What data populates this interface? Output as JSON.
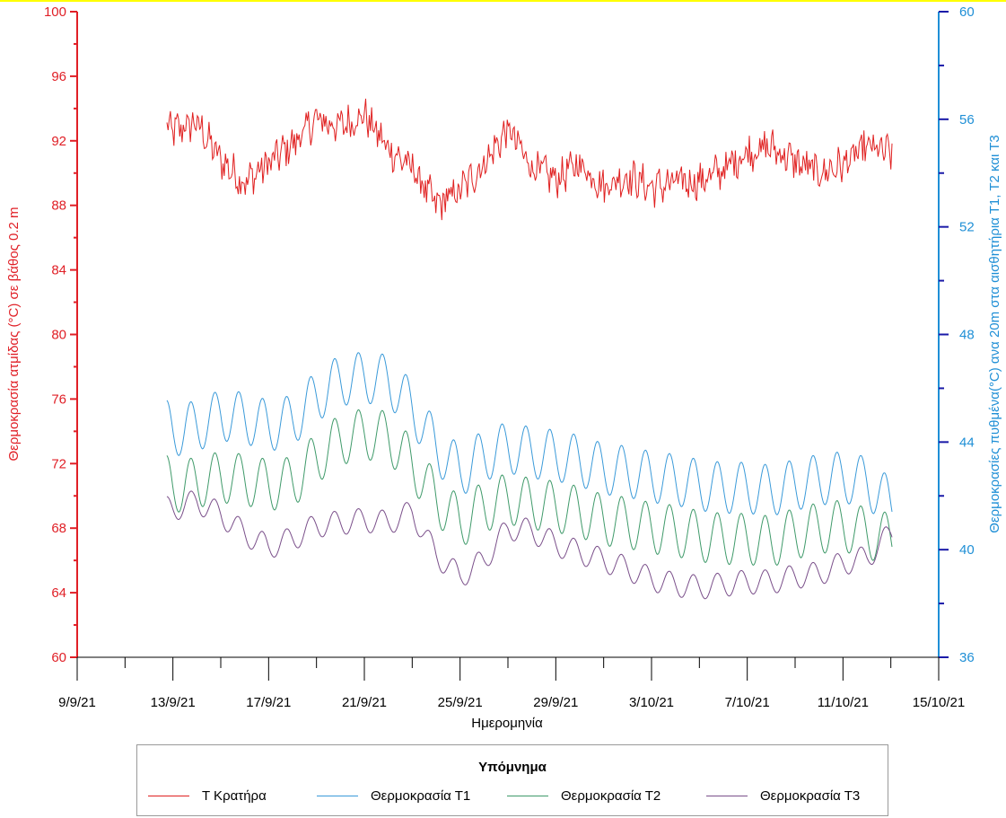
{
  "chart_data": {
    "type": "line",
    "title": "",
    "xlabel": "Ημερομηνία",
    "ylabel_left": "Θερμοκρασία ατμίδας (°C) σε βάθος 0.2 m",
    "ylabel_right": "Θερμοκρασίες πυθμένα(°C) ανα 20m στα αισθητήρια Τ1, Τ2 και Τ3",
    "x_ticks": [
      "9/9/21",
      "13/9/21",
      "17/9/21",
      "21/9/21",
      "25/9/21",
      "29/9/21",
      "3/10/21",
      "7/10/21",
      "11/10/21",
      "15/10/21"
    ],
    "xlim": [
      "2021-09-09",
      "2021-10-15"
    ],
    "y_left_ticks": [
      "60",
      "64",
      "68",
      "72",
      "76",
      "80",
      "84",
      "88",
      "92",
      "96",
      "100"
    ],
    "ylim_left": [
      60,
      100
    ],
    "y_right_ticks": [
      "36",
      "40",
      "44",
      "48",
      "52",
      "56",
      "60"
    ],
    "ylim_right": [
      36,
      60
    ],
    "grid": false,
    "legend_position": "bottom",
    "legend_title": "Υπόμνημα",
    "colors": {
      "left_axis": "#e01f26",
      "right_axis": "#1f8fd6",
      "right_axis_ticks": "#1a1aa8",
      "top_border": "#ffff00"
    },
    "series": [
      {
        "name": "Τ  Κρατήρα",
        "axis": "left",
        "color": "#e02020",
        "x": [
          "2021-09-12",
          "2021-09-13",
          "2021-09-14",
          "2021-09-15",
          "2021-09-16",
          "2021-09-17",
          "2021-09-18",
          "2021-09-19",
          "2021-09-20",
          "2021-09-21",
          "2021-09-22",
          "2021-09-23",
          "2021-09-24",
          "2021-09-25",
          "2021-09-26",
          "2021-09-27",
          "2021-09-28",
          "2021-09-29",
          "2021-09-30",
          "2021-10-01",
          "2021-10-02",
          "2021-10-03",
          "2021-10-04",
          "2021-10-05",
          "2021-10-06",
          "2021-10-07",
          "2021-10-08",
          "2021-10-09",
          "2021-10-10",
          "2021-10-11",
          "2021-10-12",
          "2021-10-13"
        ],
        "values": [
          93.5,
          92.6,
          93.1,
          90.8,
          89.4,
          90.6,
          91.8,
          93.3,
          92.9,
          93.6,
          91.5,
          90.3,
          88.0,
          88.9,
          90.6,
          92.7,
          90.4,
          89.6,
          90.6,
          89.2,
          89.8,
          89.1,
          89.4,
          89.5,
          90.2,
          91.3,
          91.6,
          90.7,
          90.0,
          90.5,
          91.6,
          91.2
        ]
      },
      {
        "name": "Θερμοκρασία Τ1",
        "axis": "right",
        "color": "#3a9ad9",
        "x": [
          "2021-09-12",
          "2021-09-13",
          "2021-09-14",
          "2021-09-15",
          "2021-09-16",
          "2021-09-17",
          "2021-09-18",
          "2021-09-19",
          "2021-09-20",
          "2021-09-21",
          "2021-09-22",
          "2021-09-23",
          "2021-09-24",
          "2021-09-25",
          "2021-09-26",
          "2021-09-27",
          "2021-09-28",
          "2021-09-29",
          "2021-09-30",
          "2021-10-01",
          "2021-10-02",
          "2021-10-03",
          "2021-10-04",
          "2021-10-05",
          "2021-10-06",
          "2021-10-07",
          "2021-10-08",
          "2021-10-09",
          "2021-10-10",
          "2021-10-11",
          "2021-10-12",
          "2021-10-13"
        ],
        "values": [
          45.2,
          44.4,
          44.6,
          45.0,
          44.9,
          44.6,
          44.8,
          45.7,
          46.3,
          46.4,
          46.3,
          45.3,
          43.8,
          42.9,
          43.5,
          43.8,
          43.6,
          43.5,
          43.3,
          43.0,
          42.9,
          42.7,
          42.6,
          42.4,
          42.3,
          42.3,
          42.2,
          42.4,
          42.6,
          42.7,
          42.5,
          41.7
        ]
      },
      {
        "name": "Θερμοκρασία Τ2",
        "axis": "right",
        "color": "#3f9a6a",
        "x": [
          "2021-09-12",
          "2021-09-13",
          "2021-09-14",
          "2021-09-15",
          "2021-09-16",
          "2021-09-17",
          "2021-09-18",
          "2021-09-19",
          "2021-09-20",
          "2021-09-21",
          "2021-09-22",
          "2021-09-23",
          "2021-09-24",
          "2021-09-25",
          "2021-09-26",
          "2021-09-27",
          "2021-09-28",
          "2021-09-29",
          "2021-09-30",
          "2021-10-01",
          "2021-10-02",
          "2021-10-03",
          "2021-10-04",
          "2021-10-05",
          "2021-10-06",
          "2021-10-07",
          "2021-10-08",
          "2021-10-09",
          "2021-10-10",
          "2021-10-11",
          "2021-10-12",
          "2021-10-13"
        ],
        "values": [
          43.3,
          42.3,
          42.5,
          42.7,
          42.6,
          42.4,
          42.5,
          43.4,
          44.1,
          44.3,
          44.2,
          43.2,
          41.9,
          41.0,
          41.6,
          41.9,
          41.7,
          41.6,
          41.4,
          41.1,
          41.0,
          40.8,
          40.7,
          40.5,
          40.4,
          40.4,
          40.3,
          40.6,
          40.8,
          40.9,
          40.6,
          40.4
        ]
      },
      {
        "name": "Θερμοκρασία Τ3",
        "axis": "right",
        "color": "#7a4f8a",
        "x": [
          "2021-09-12",
          "2021-09-13",
          "2021-09-14",
          "2021-09-15",
          "2021-09-16",
          "2021-09-17",
          "2021-09-18",
          "2021-09-19",
          "2021-09-20",
          "2021-09-21",
          "2021-09-22",
          "2021-09-23",
          "2021-09-24",
          "2021-09-25",
          "2021-09-26",
          "2021-09-27",
          "2021-09-28",
          "2021-09-29",
          "2021-09-30",
          "2021-10-01",
          "2021-10-02",
          "2021-10-03",
          "2021-10-04",
          "2021-10-05",
          "2021-10-06",
          "2021-10-07",
          "2021-10-08",
          "2021-10-09",
          "2021-10-10",
          "2021-10-11",
          "2021-10-12",
          "2021-10-13"
        ],
        "values": [
          41.6,
          41.5,
          41.8,
          41.3,
          40.6,
          40.1,
          40.4,
          40.9,
          41.0,
          41.1,
          41.0,
          41.4,
          39.8,
          39.0,
          39.6,
          40.8,
          40.7,
          40.2,
          39.9,
          39.6,
          39.3,
          38.9,
          38.7,
          38.6,
          38.7,
          38.8,
          38.8,
          39.0,
          39.1,
          39.5,
          39.7,
          40.6
        ]
      }
    ]
  }
}
